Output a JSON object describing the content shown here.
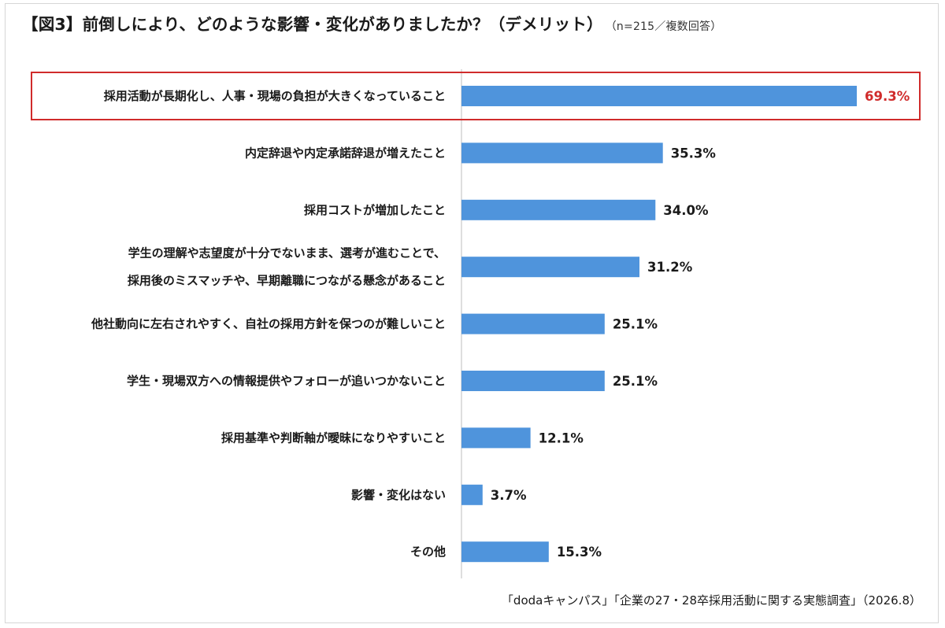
{
  "title": "【図3】前倒しにより、どのような影響・変化がありましたか？（デメリット）",
  "note": "（n=215／複数回答）",
  "source": "「dodaキャンパス」「企業の27・28卒採用活動に関する実態調査」（2026.8）",
  "colors": {
    "bar": "#4f94dc",
    "highlight": "#d02b2b",
    "axis": "#bdbdbd",
    "text": "#1a1a1a"
  },
  "chart_data": {
    "type": "bar",
    "orientation": "horizontal",
    "unit": "%",
    "xlim": [
      0,
      70
    ],
    "grid": false,
    "highlight_index": 0,
    "categories": [
      [
        "採用活動が長期化し、人事・現場の負担が大きくなっていること"
      ],
      [
        "内定辞退や内定承諾辞退が増えたこと"
      ],
      [
        "採用コストが増加したこと"
      ],
      [
        "学生の理解や志望度が十分でないまま、選考が進むことで、",
        "採用後のミスマッチや、早期離職につながる懸念があること"
      ],
      [
        "他社動向に左右されやすく、自社の採用方針を保つのが難しいこと"
      ],
      [
        "学生・現場双方への情報提供やフォローが追いつかないこと"
      ],
      [
        "採用基準や判断軸が曖昧になりやすいこと"
      ],
      [
        "影響・変化はない"
      ],
      [
        "その他"
      ]
    ],
    "values": [
      69.3,
      35.3,
      34.0,
      31.2,
      25.1,
      25.1,
      12.1,
      3.7,
      15.3
    ],
    "value_labels": [
      "69.3%",
      "35.3%",
      "34.0%",
      "31.2%",
      "25.1%",
      "25.1%",
      "12.1%",
      "3.7%",
      "15.3%"
    ]
  }
}
